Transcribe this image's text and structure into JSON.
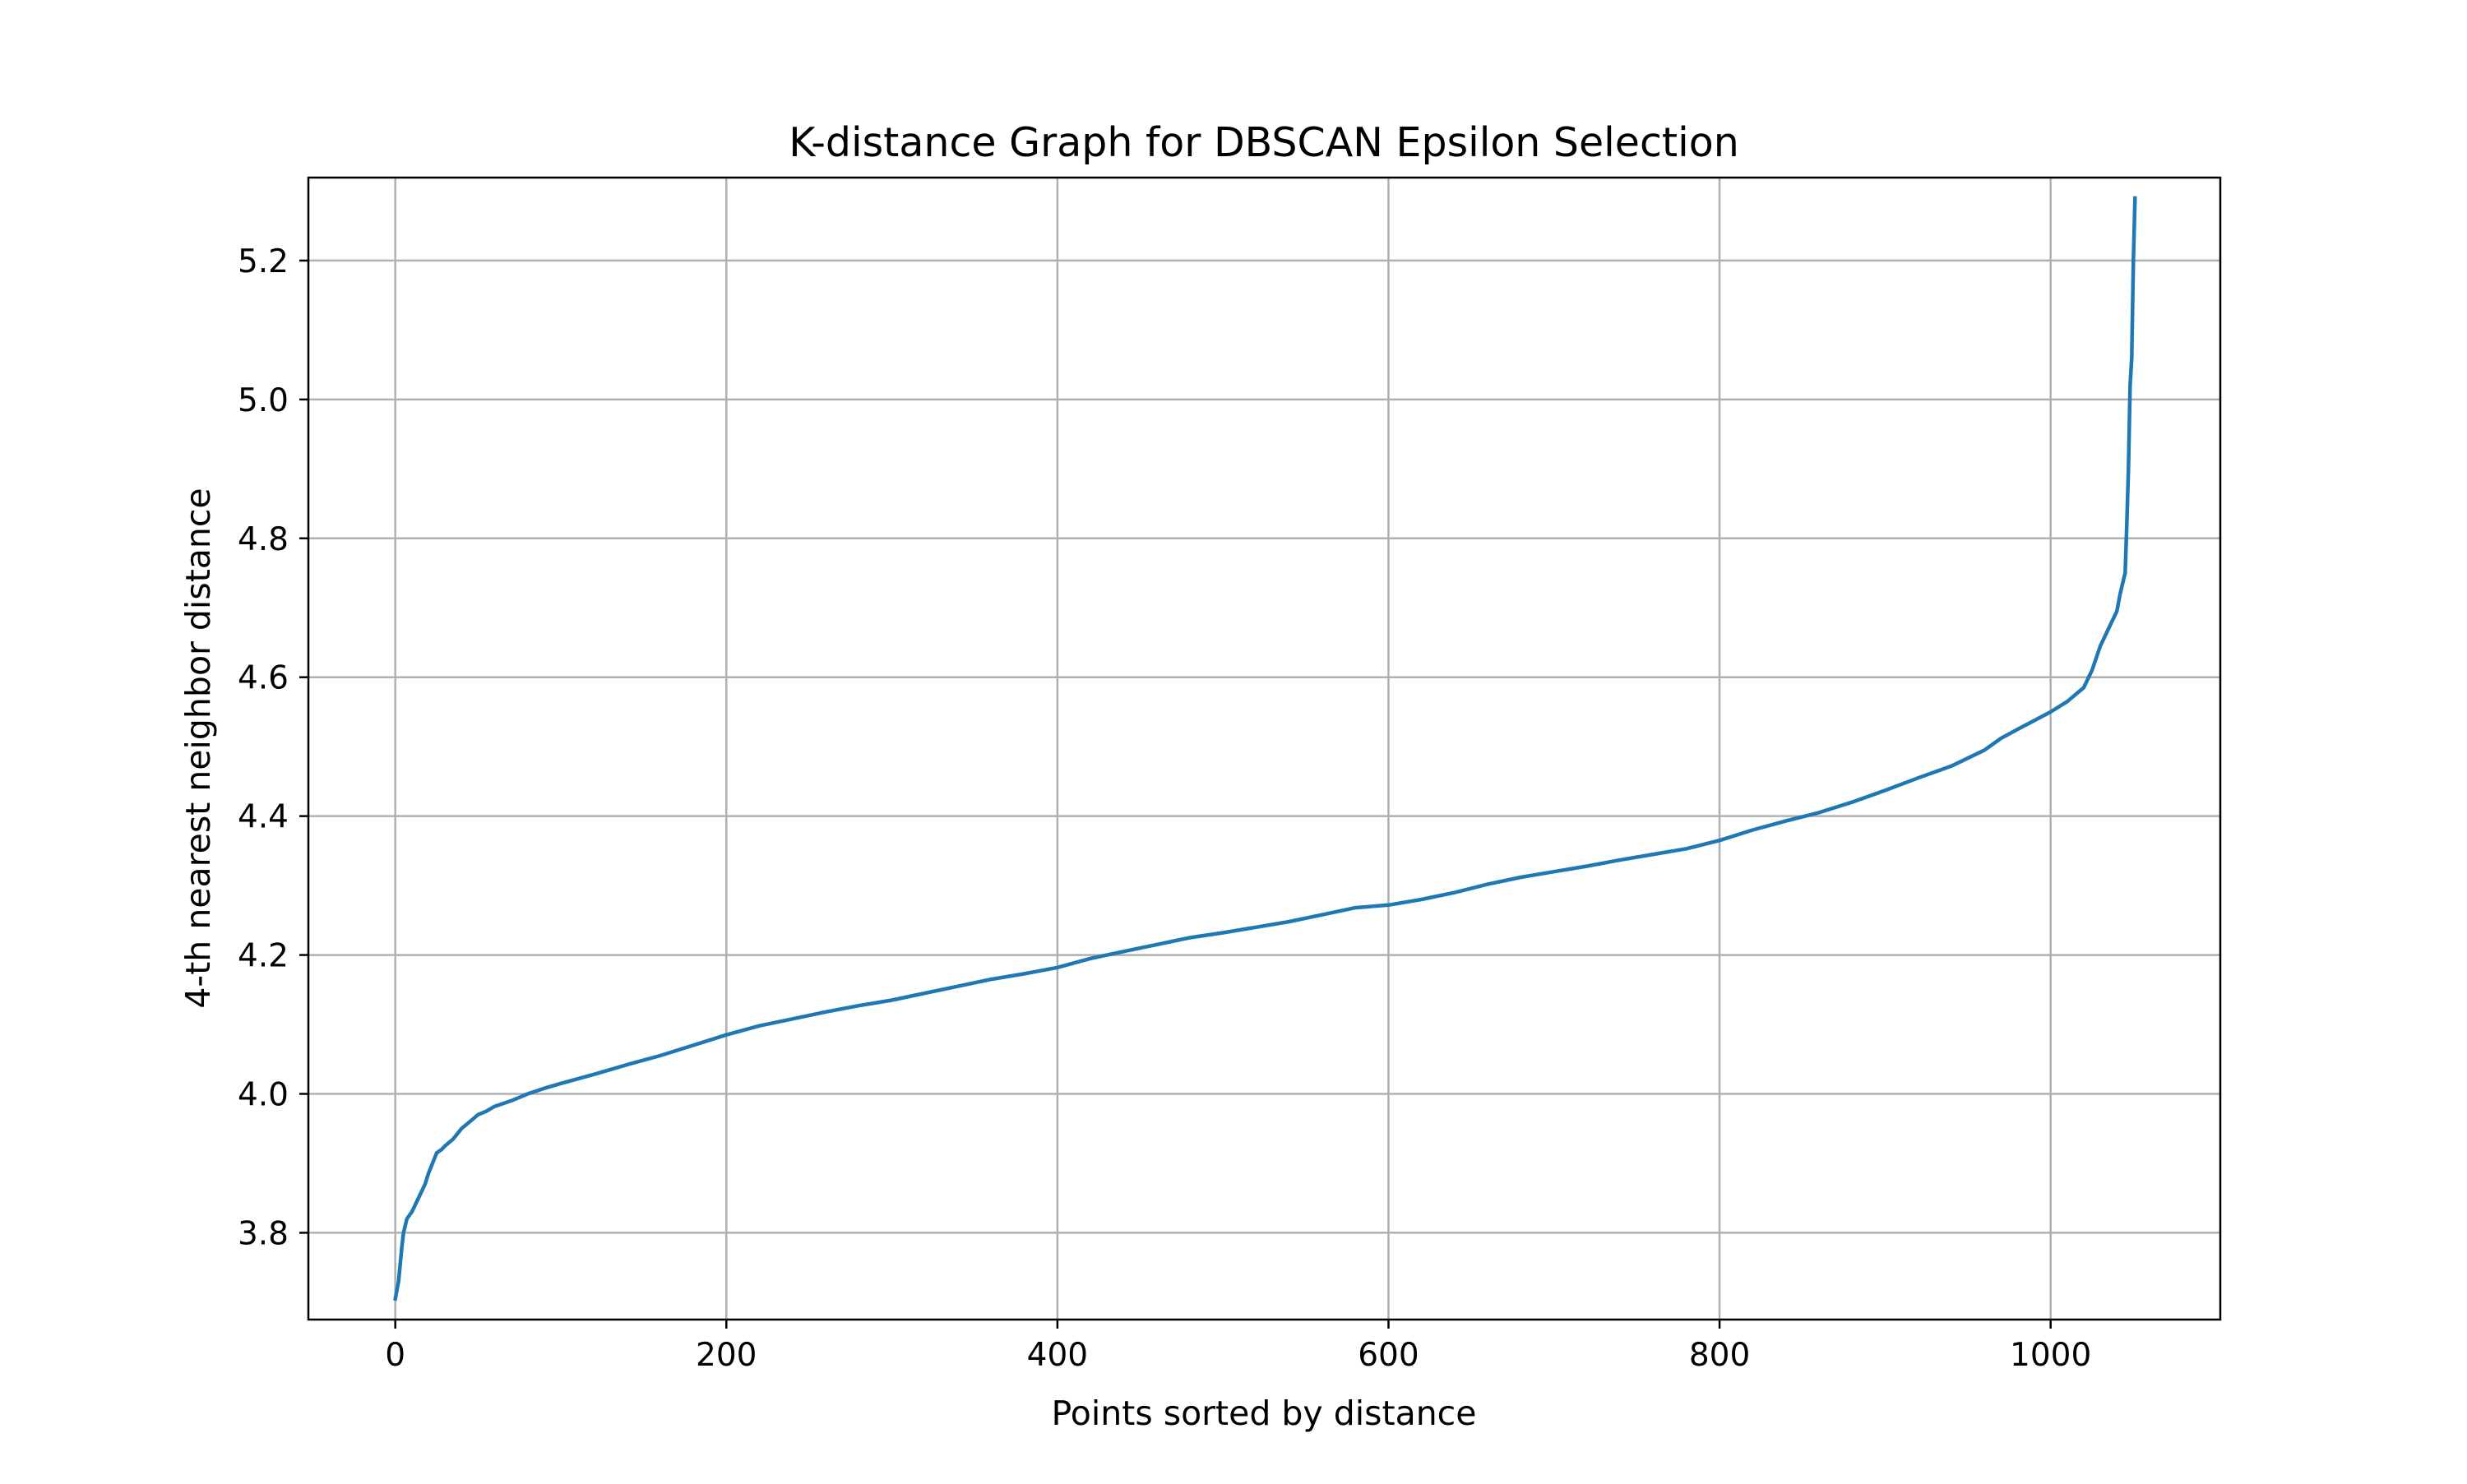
{
  "chart_data": {
    "type": "line",
    "title": "K-distance Graph for DBSCAN Epsilon Selection",
    "xlabel": "Points sorted by distance",
    "ylabel": "4-th nearest neighbor distance",
    "xlim": [
      -52.5,
      1102.5
    ],
    "ylim": [
      3.675,
      5.3195
    ],
    "xticks": [
      0,
      200,
      400,
      600,
      800,
      1000
    ],
    "xtick_labels": [
      "0",
      "200",
      "400",
      "600",
      "800",
      "1000"
    ],
    "yticks": [
      3.8,
      4.0,
      4.2,
      4.4,
      4.6,
      4.8,
      5.0,
      5.2
    ],
    "ytick_labels": [
      "3.8",
      "4.0",
      "4.2",
      "4.4",
      "4.6",
      "4.8",
      "5.0",
      "5.2"
    ],
    "grid": true,
    "line_color": "#1f77b4",
    "grid_color": "#b0b0b0",
    "series": [
      {
        "x": [
          0,
          2,
          4,
          5,
          7,
          10,
          13,
          15,
          18,
          20,
          25,
          28,
          30,
          35,
          40,
          45,
          50,
          55,
          60,
          70,
          80,
          90,
          100,
          120,
          140,
          160,
          180,
          200,
          220,
          240,
          260,
          280,
          300,
          320,
          340,
          360,
          380,
          400,
          420,
          440,
          460,
          480,
          500,
          520,
          540,
          560,
          580,
          600,
          620,
          640,
          660,
          680,
          700,
          720,
          740,
          760,
          780,
          800,
          820,
          840,
          860,
          880,
          900,
          920,
          940,
          960,
          970,
          980,
          1000,
          1010,
          1020,
          1025,
          1030,
          1035,
          1040,
          1042,
          1044,
          1045,
          1046,
          1047,
          1048,
          1049,
          1050,
          1051
        ],
        "y": [
          3.705,
          3.73,
          3.78,
          3.8,
          3.82,
          3.83,
          3.845,
          3.855,
          3.87,
          3.885,
          3.915,
          3.92,
          3.925,
          3.935,
          3.95,
          3.96,
          3.97,
          3.975,
          3.982,
          3.99,
          4.0,
          4.008,
          4.015,
          4.028,
          4.042,
          4.055,
          4.07,
          4.085,
          4.098,
          4.108,
          4.118,
          4.127,
          4.135,
          4.145,
          4.155,
          4.165,
          4.173,
          4.182,
          4.195,
          4.205,
          4.215,
          4.225,
          4.232,
          4.24,
          4.248,
          4.258,
          4.268,
          4.272,
          4.28,
          4.29,
          4.302,
          4.312,
          4.32,
          4.328,
          4.337,
          4.345,
          4.353,
          4.365,
          4.38,
          4.393,
          4.405,
          4.42,
          4.437,
          4.455,
          4.472,
          4.495,
          4.512,
          4.525,
          4.55,
          4.565,
          4.585,
          4.61,
          4.645,
          4.67,
          4.695,
          4.72,
          4.74,
          4.75,
          4.82,
          4.9,
          5.02,
          5.06,
          5.2,
          5.29
        ]
      }
    ]
  }
}
